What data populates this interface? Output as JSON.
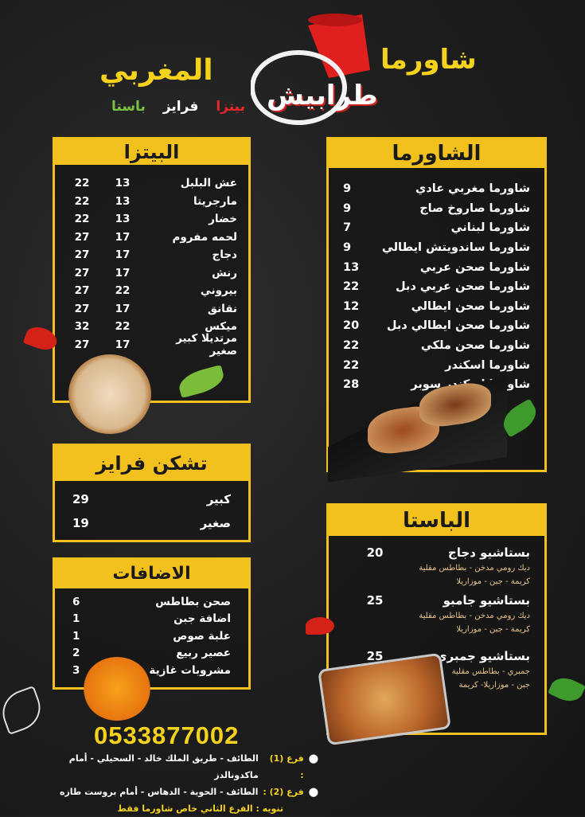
{
  "brand": {
    "logo_text": "طرابيش",
    "shawarma": "شاورما",
    "moroccan": "المغربي",
    "tags": [
      {
        "label": "بيتزا",
        "color": "#e8262b"
      },
      {
        "label": "فرايز",
        "color": "#ffffff"
      },
      {
        "label": "باستا",
        "color": "#7cc242"
      }
    ]
  },
  "colors": {
    "accent": "#f2c11d",
    "background": "#1d1d1d"
  },
  "pizza": {
    "title": "البيتزا",
    "items": [
      {
        "name": "عش البلبل",
        "small": "13",
        "large": "22"
      },
      {
        "name": "مارجريتا",
        "small": "13",
        "large": "22"
      },
      {
        "name": "خضار",
        "small": "13",
        "large": "22"
      },
      {
        "name": "لحمه مفروم",
        "small": "17",
        "large": "27"
      },
      {
        "name": "دجاج",
        "small": "17",
        "large": "27"
      },
      {
        "name": "رنش",
        "small": "17",
        "large": "27"
      },
      {
        "name": "بيروني",
        "small": "22",
        "large": "27"
      },
      {
        "name": "نقانق",
        "small": "17",
        "large": "27"
      },
      {
        "name": "ميكس",
        "small": "22",
        "large": "32"
      },
      {
        "name": "مرتديلا كبير صغير",
        "small": "17",
        "large": "27"
      }
    ]
  },
  "shawarma": {
    "title": "الشاورما",
    "items": [
      {
        "name": "شاورما مغربي عادي",
        "price": "9"
      },
      {
        "name": "شاورما صاروخ صاج",
        "price": "9"
      },
      {
        "name": "شاورما لبناني",
        "price": "7"
      },
      {
        "name": "شاورما ساندويتش ايطالي",
        "price": "9"
      },
      {
        "name": "شاورما صحن عربي",
        "price": "13"
      },
      {
        "name": "شاورما صحن عربي دبل",
        "price": "22"
      },
      {
        "name": "شاورما صحن ايطالي",
        "price": "12"
      },
      {
        "name": "شاورما صحن ايطالي دبل",
        "price": "20"
      },
      {
        "name": "شاورما صحن ملكي",
        "price": "22"
      },
      {
        "name": "شاورما اسكندر",
        "price": "22"
      },
      {
        "name": "شاورما اسكندر سوبر",
        "price": "28"
      }
    ]
  },
  "fries": {
    "title": "تشكن فرايز",
    "items": [
      {
        "name": "كبير",
        "price": "29"
      },
      {
        "name": "صغير",
        "price": "19"
      }
    ]
  },
  "additions": {
    "title": "الاضافات",
    "items": [
      {
        "name": "صحن بطاطس",
        "price": "6"
      },
      {
        "name": "اضافة جبن",
        "price": "1"
      },
      {
        "name": "علبة صوص",
        "price": "1"
      },
      {
        "name": "عصير ربيع",
        "price": "2"
      },
      {
        "name": "مشروبات غازية",
        "price": "3"
      }
    ]
  },
  "pasta": {
    "title": "الباستا",
    "items": [
      {
        "name": "بستاشيو دجاج",
        "price": "20",
        "desc": [
          "ديك رومي مدخن - بطاطس مقلية",
          "كريمة - جبن - موزاريلا"
        ]
      },
      {
        "name": "بستاشيو جامبو",
        "price": "25",
        "desc": [
          "ديك رومي مدخن - بطاطس مقلية",
          "كريمة - جبن - موزاريلا"
        ]
      },
      {
        "name": "بستاشيو جمبري",
        "price": "25",
        "desc": [
          "جمبري - بطاطس مقلية",
          "جبن - موزاريلا- كريمة"
        ]
      }
    ]
  },
  "footer": {
    "phone": "0533877002",
    "branches": [
      {
        "label": "فرع (1) :",
        "address": "الطائف - طريق الملك خالد - السحيلي - أمام ماكدونالدز"
      },
      {
        "label": "فرع (2) :",
        "address": "الطائف - الحوية - الدهاس - أمام بروست طازه"
      }
    ],
    "note": "تنويه :  الفرع الثاني خاص شاورما فقط",
    "location_icon": "map-pin-icon"
  }
}
